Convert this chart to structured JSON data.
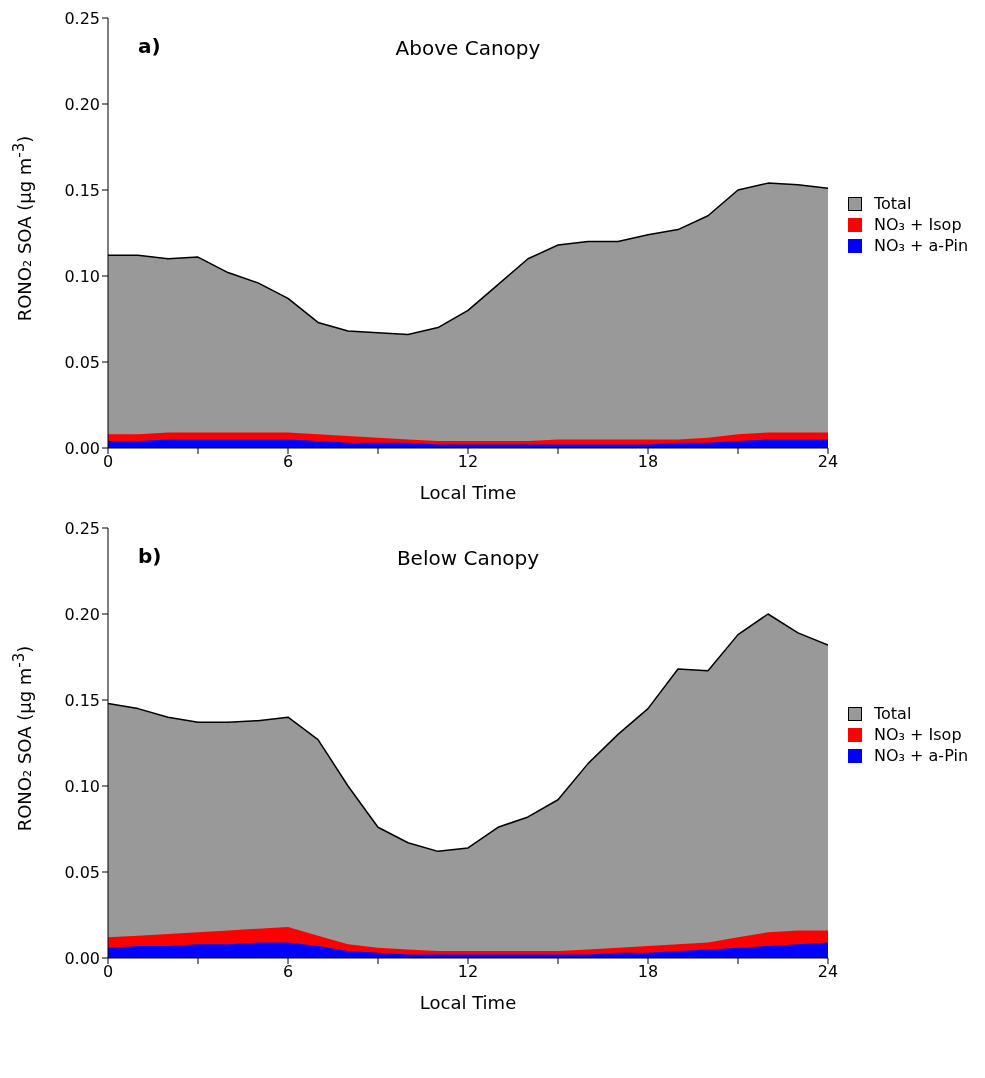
{
  "chart_data": [
    {
      "type": "area",
      "title": "Above Canopy",
      "annotations": [
        "a)"
      ],
      "xlabel": "Local Time",
      "ylabel": "RONO₂ SOA (µg m$^{-3}$)",
      "legend": "right",
      "x": [
        0,
        1,
        2,
        3,
        4,
        5,
        6,
        7,
        8,
        9,
        10,
        11,
        12,
        13,
        14,
        15,
        16,
        17,
        18,
        19,
        20,
        21,
        22,
        23,
        24
      ],
      "xlim": [
        0,
        24
      ],
      "xticks": [
        0,
        {
          "value": 3,
          "label": null
        },
        6,
        {
          "value": 9,
          "label": null
        },
        12,
        {
          "value": 15,
          "label": null
        },
        18,
        {
          "value": 21,
          "label": null
        },
        24
      ],
      "ylim": [
        0,
        0.25
      ],
      "yticks": [
        {
          "value": 0,
          "label": "0.00"
        },
        0.05,
        {
          "value": 0.1,
          "label": "0.10"
        },
        0.15,
        {
          "value": 0.2,
          "label": "0.20"
        },
        0.25
      ],
      "series": [
        {
          "name": "Total",
          "color": "#999999",
          "values": [
            0.112,
            0.112,
            0.11,
            0.111,
            0.102,
            0.096,
            0.087,
            0.073,
            0.068,
            0.067,
            0.066,
            0.07,
            0.08,
            0.095,
            0.11,
            0.118,
            0.12,
            0.12,
            0.124,
            0.127,
            0.135,
            0.15,
            0.154,
            0.153,
            0.151
          ]
        },
        {
          "name": "NO₃ + Isop",
          "color": "#ff0000",
          "values": [
            0.008,
            0.008,
            0.009,
            0.009,
            0.009,
            0.009,
            0.009,
            0.008,
            0.007,
            0.006,
            0.005,
            0.004,
            0.004,
            0.004,
            0.004,
            0.005,
            0.005,
            0.005,
            0.005,
            0.005,
            0.006,
            0.008,
            0.009,
            0.009,
            0.009
          ]
        },
        {
          "name": "NO₃ + a-Pin",
          "color": "#0000ff",
          "values": [
            0.004,
            0.004,
            0.005,
            0.005,
            0.005,
            0.005,
            0.005,
            0.004,
            0.003,
            0.003,
            0.003,
            0.002,
            0.002,
            0.002,
            0.002,
            0.002,
            0.002,
            0.002,
            0.002,
            0.003,
            0.003,
            0.004,
            0.005,
            0.005,
            0.005
          ]
        }
      ]
    },
    {
      "type": "area",
      "title": "Below Canopy",
      "annotations": [
        "b)"
      ],
      "xlabel": "Local Time",
      "ylabel": "RONO₂ SOA (µg m$^{-3}$)",
      "legend": "right",
      "x": [
        0,
        1,
        2,
        3,
        4,
        5,
        6,
        7,
        8,
        9,
        10,
        11,
        12,
        13,
        14,
        15,
        16,
        17,
        18,
        19,
        20,
        21,
        22,
        23,
        24
      ],
      "xlim": [
        0,
        24
      ],
      "xticks": [
        0,
        {
          "value": 3,
          "label": null
        },
        6,
        {
          "value": 9,
          "label": null
        },
        12,
        {
          "value": 15,
          "label": null
        },
        18,
        {
          "value": 21,
          "label": null
        },
        24
      ],
      "ylim": [
        0,
        0.25
      ],
      "yticks": [
        {
          "value": 0,
          "label": "0.00"
        },
        0.05,
        {
          "value": 0.1,
          "label": "0.10"
        },
        0.15,
        {
          "value": 0.2,
          "label": "0.20"
        },
        0.25
      ],
      "series": [
        {
          "name": "Total",
          "color": "#999999",
          "values": [
            0.148,
            0.145,
            0.14,
            0.137,
            0.137,
            0.138,
            0.14,
            0.127,
            0.1,
            0.076,
            0.067,
            0.062,
            0.064,
            0.076,
            0.082,
            0.092,
            0.113,
            0.13,
            0.145,
            0.168,
            0.167,
            0.188,
            0.2,
            0.189,
            0.182
          ]
        },
        {
          "name": "NO₃ + Isop",
          "color": "#ff0000",
          "values": [
            0.012,
            0.013,
            0.014,
            0.015,
            0.016,
            0.017,
            0.018,
            0.013,
            0.008,
            0.006,
            0.005,
            0.004,
            0.004,
            0.004,
            0.004,
            0.004,
            0.005,
            0.006,
            0.007,
            0.008,
            0.009,
            0.012,
            0.015,
            0.016,
            0.016
          ]
        },
        {
          "name": "NO₃ + a-Pin",
          "color": "#0000ff",
          "values": [
            0.006,
            0.007,
            0.007,
            0.008,
            0.008,
            0.009,
            0.009,
            0.007,
            0.004,
            0.003,
            0.002,
            0.002,
            0.002,
            0.002,
            0.002,
            0.002,
            0.002,
            0.003,
            0.003,
            0.004,
            0.005,
            0.006,
            0.007,
            0.008,
            0.009
          ]
        }
      ]
    }
  ]
}
